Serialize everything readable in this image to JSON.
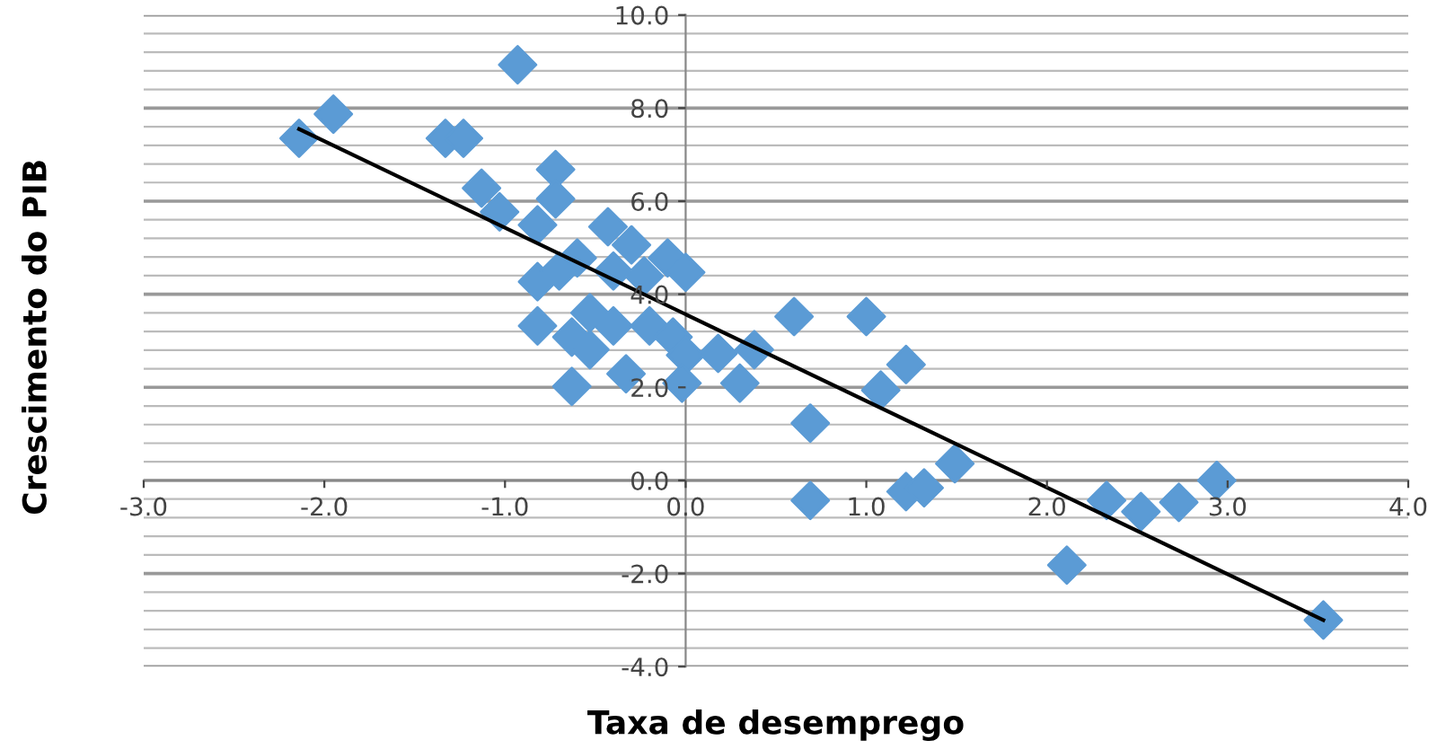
{
  "chart_data": {
    "type": "scatter",
    "xlabel": "Taxa de desemprego",
    "ylabel": "Crescimento do PIB",
    "xlim": [
      -3,
      4
    ],
    "ylim": [
      -4,
      10
    ],
    "xticks": [
      {
        "value": -3,
        "label": "-3.0"
      },
      {
        "value": -2,
        "label": "-2.0"
      },
      {
        "value": -1,
        "label": "-1.0"
      },
      {
        "value": 0,
        "label": "0.0"
      },
      {
        "value": 1,
        "label": "1.0"
      },
      {
        "value": 2,
        "label": "2.0"
      },
      {
        "value": 3,
        "label": "3.0"
      },
      {
        "value": 4,
        "label": "4.0"
      }
    ],
    "yticks": [
      {
        "value": -4,
        "label": "-4.0"
      },
      {
        "value": -2,
        "label": "-2.0"
      },
      {
        "value": 0,
        "label": "0.0"
      },
      {
        "value": 2,
        "label": "2.0"
      },
      {
        "value": 4,
        "label": "4.0"
      },
      {
        "value": 6,
        "label": "6.0"
      },
      {
        "value": 8,
        "label": "8.0"
      },
      {
        "value": 10,
        "label": "10.0"
      }
    ],
    "grid": "y",
    "legend": false,
    "series": [
      {
        "color": "#5b9bd5",
        "marker": "diamond",
        "x": [
          -2.14,
          -1.95,
          -1.33,
          -1.23,
          -0.93,
          -0.72,
          -1.13,
          -1.03,
          -0.72,
          -0.82,
          -0.43,
          -0.3,
          -0.1,
          0.0,
          -0.4,
          -0.23,
          -0.6,
          -0.82,
          -0.7,
          -0.82,
          -0.53,
          -0.4,
          -0.2,
          -0.63,
          -0.53,
          -0.07,
          0.0,
          -0.63,
          -0.33,
          -0.02,
          0.18,
          0.3,
          0.38,
          0.6,
          1.0,
          1.22,
          1.08,
          0.69,
          0.69,
          1.22,
          1.32,
          1.49,
          2.11,
          2.33,
          2.52,
          2.73,
          2.94,
          3.53
        ],
        "values": [
          7.35,
          7.87,
          7.35,
          7.35,
          8.93,
          6.68,
          6.28,
          5.77,
          6.05,
          5.49,
          5.45,
          5.06,
          4.78,
          4.47,
          4.5,
          4.39,
          4.78,
          4.27,
          4.5,
          3.32,
          3.6,
          3.32,
          3.32,
          3.08,
          2.81,
          3.08,
          2.69,
          2.02,
          2.29,
          2.09,
          2.73,
          2.09,
          2.81,
          3.52,
          3.52,
          2.49,
          1.94,
          1.23,
          -0.43,
          -0.24,
          -0.16,
          0.36,
          -1.82,
          -0.43,
          -0.67,
          -0.47,
          0.0,
          -3.0
        ]
      },
      {
        "type": "line",
        "color": "#000000",
        "marker": "none",
        "line_style": "solid",
        "x": [
          -2.14,
          3.53
        ],
        "values": [
          7.55,
          -3.0
        ]
      }
    ]
  }
}
